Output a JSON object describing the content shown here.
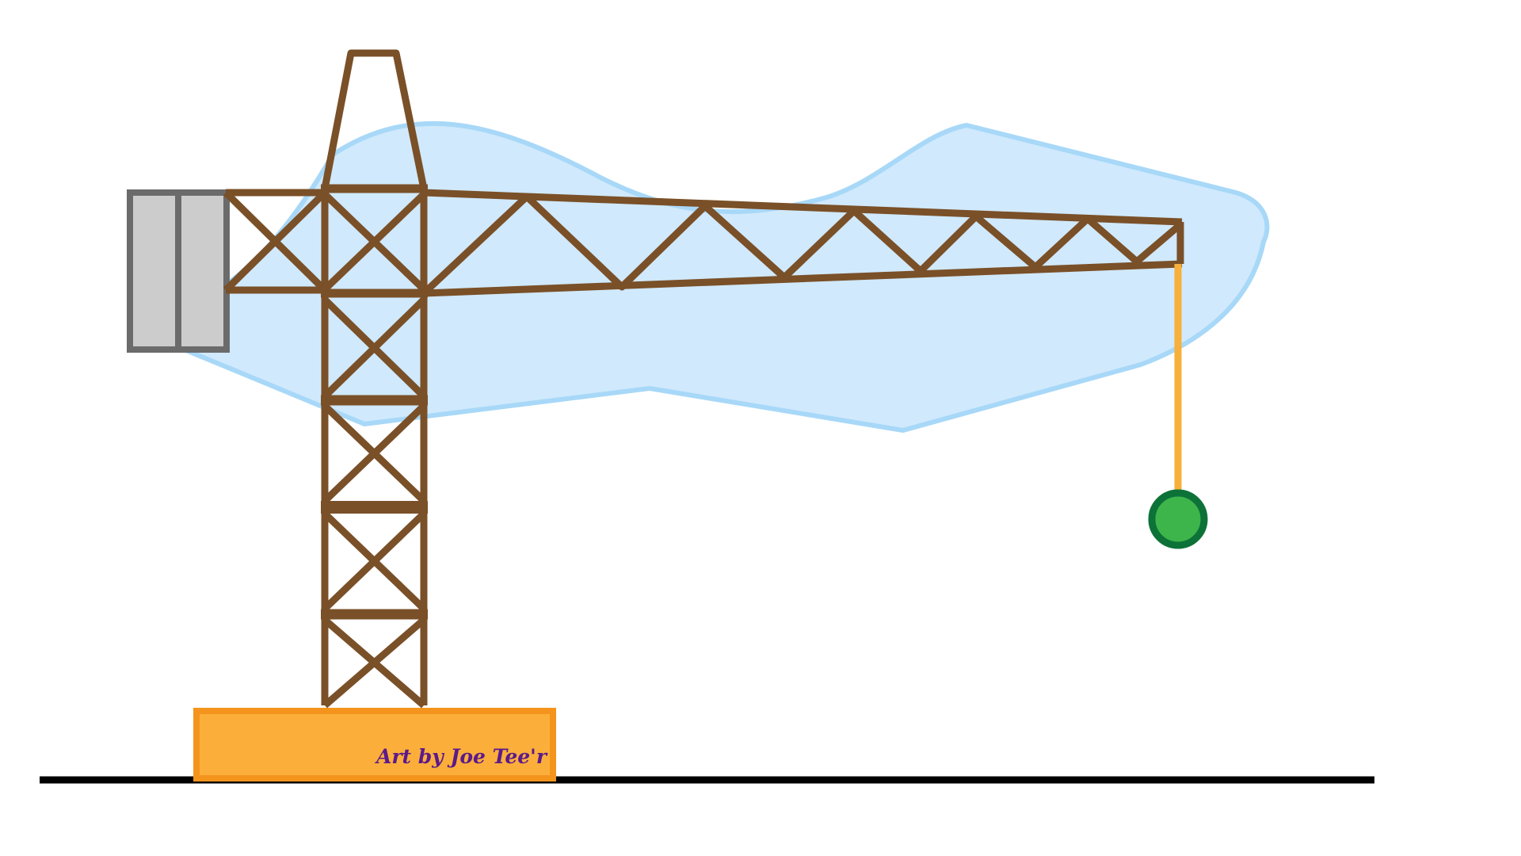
{
  "title": "Tower crane illustration",
  "signature": "Art by Joe Tee'r",
  "colors": {
    "background": "#ffffff",
    "cloud_fill": "#d0e9fc",
    "cloud_stroke": "#a8d8f8",
    "crane_steel": "#7a5028",
    "counterweight_fill": "#cccccc",
    "counterweight_stroke": "#6b6b6b",
    "base_fill": "#fbaf3a",
    "base_stroke": "#f4941d",
    "cable": "#f7b03a",
    "hook_fill": "#3db54a",
    "hook_stroke": "#0d7238",
    "ground": "#000000",
    "signature": "#5c1a8a"
  }
}
